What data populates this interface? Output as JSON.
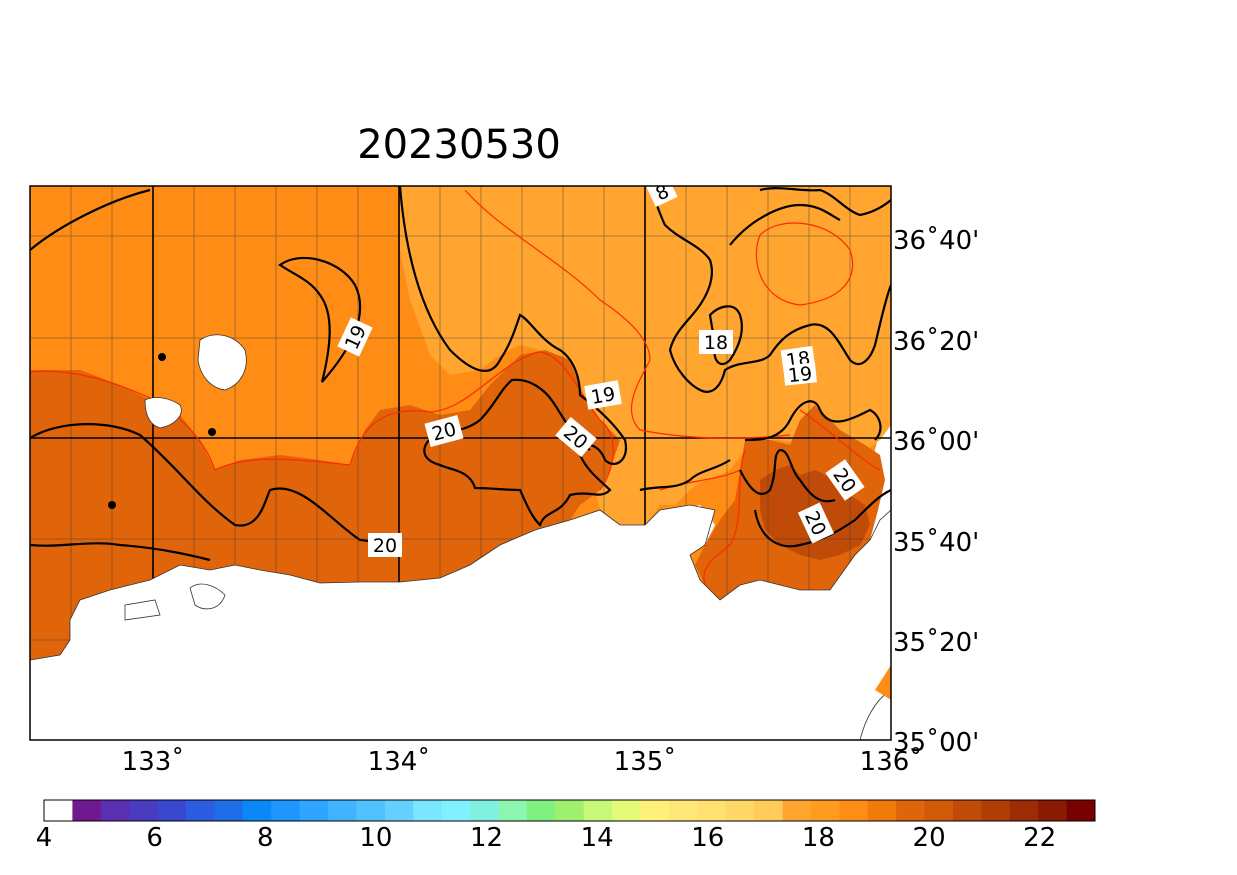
{
  "title": "20230530",
  "colors": {
    "sea": "#ffffff",
    "band_17_18": "#ffa530",
    "band_18_19": "#ff8c14",
    "band_19_20": "#e0640a",
    "band_20_21": "#c04a08",
    "fine_contour": "#ff2a00",
    "major_contour": "#000000"
  },
  "map": {
    "lon_range": [
      132.5,
      136.0
    ],
    "lat_range": [
      35.0,
      36.9
    ],
    "lon_ticks": [
      {
        "value": 133,
        "label": "133˚"
      },
      {
        "value": 134,
        "label": "134˚"
      },
      {
        "value": 135,
        "label": "135˚"
      },
      {
        "value": 136,
        "label": "136˚"
      }
    ],
    "lat_ticks": [
      {
        "value": 36.6667,
        "label": "36˚40'"
      },
      {
        "value": 36.3333,
        "label": "36˚20'"
      },
      {
        "value": 36.0,
        "label": "36˚00'"
      },
      {
        "value": 35.6667,
        "label": "35˚40'"
      },
      {
        "value": 35.3333,
        "label": "35˚20'"
      },
      {
        "value": 35.0,
        "label": "35˚00'"
      }
    ],
    "contour_labels": [
      {
        "text": "8"
      },
      {
        "text": "19"
      },
      {
        "text": "18"
      },
      {
        "text": "18"
      },
      {
        "text": "19"
      },
      {
        "text": "19"
      },
      {
        "text": "20"
      },
      {
        "text": "20"
      },
      {
        "text": "20"
      },
      {
        "text": "20"
      },
      {
        "text": "20"
      }
    ],
    "station_markers": 3
  },
  "colorbar": {
    "range": [
      4,
      23
    ],
    "labels": [
      "4",
      "6",
      "8",
      "10",
      "12",
      "14",
      "16",
      "18",
      "20",
      "22"
    ],
    "colors": [
      "#ffffff",
      "#701890",
      "#5a2fb0",
      "#4a3cc0",
      "#3a48d0",
      "#2c5ce0",
      "#1f6ee8",
      "#0a88f5",
      "#1e96ff",
      "#2ea5ff",
      "#40b4ff",
      "#52c2ff",
      "#64d0ff",
      "#7ae6ff",
      "#80f2ff",
      "#80f0e0",
      "#8cf5b0",
      "#80f080",
      "#a0f070",
      "#c8f878",
      "#e6fa7a",
      "#fff07a",
      "#ffe878",
      "#ffe070",
      "#ffd868",
      "#ffcc5a",
      "#ffa530",
      "#ff9c20",
      "#ff8c14",
      "#f07a0a",
      "#e0640a",
      "#d05a08",
      "#c04a08",
      "#b03c06",
      "#9c2c04",
      "#8a1a02",
      "#780000"
    ]
  }
}
